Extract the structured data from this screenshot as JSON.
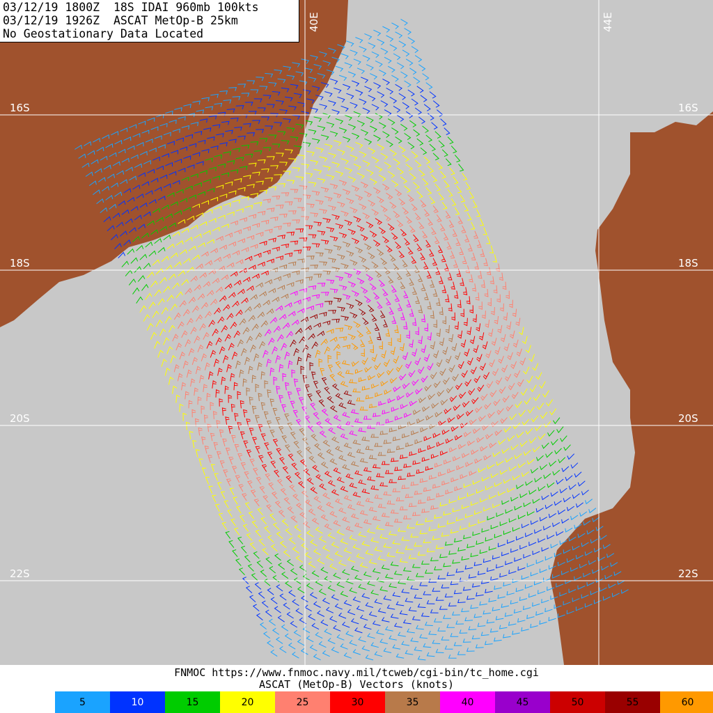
{
  "header": {
    "line1": "03/12/19 1800Z  18S IDAI 960mb 100kts",
    "line2": "03/12/19 1926Z  ASCAT MetOp-B 25km",
    "line3": "No Geostationary Data Located"
  },
  "grid": {
    "lat_labels": [
      "16S",
      "18S",
      "20S",
      "22S"
    ],
    "lon_labels": [
      "40E",
      "44E"
    ]
  },
  "footer": {
    "credit": "FNMOC https://www.fnmoc.navy.mil/tcweb/cgi-bin/tc_home.cgi",
    "legend_title": "ASCAT (MetOp-B) Vectors (knots)"
  },
  "legend": [
    {
      "value": "5",
      "color": "#1aa3ff",
      "text_color": "#000000"
    },
    {
      "value": "10",
      "color": "#0033ff",
      "text_color": "#ffffff"
    },
    {
      "value": "15",
      "color": "#00cc00",
      "text_color": "#000000"
    },
    {
      "value": "20",
      "color": "#ffff00",
      "text_color": "#000000"
    },
    {
      "value": "25",
      "color": "#ff8070",
      "text_color": "#000000"
    },
    {
      "value": "30",
      "color": "#ff0000",
      "text_color": "#000000"
    },
    {
      "value": "35",
      "color": "#b87a4a",
      "text_color": "#000000"
    },
    {
      "value": "40",
      "color": "#ff00ff",
      "text_color": "#000000"
    },
    {
      "value": "45",
      "color": "#9900cc",
      "text_color": "#000000"
    },
    {
      "value": "50",
      "color": "#cc0000",
      "text_color": "#000000"
    },
    {
      "value": "55",
      "color": "#990000",
      "text_color": "#000000"
    },
    {
      "value": "60",
      "color": "#ff9900",
      "text_color": "#000000"
    }
  ],
  "map": {
    "ocean_color": "#c8c8c8",
    "land_color": "#a0522d",
    "grid_color": "#ffffff",
    "storm_center": {
      "lat": "19.2S",
      "lon": "40.5E"
    }
  }
}
